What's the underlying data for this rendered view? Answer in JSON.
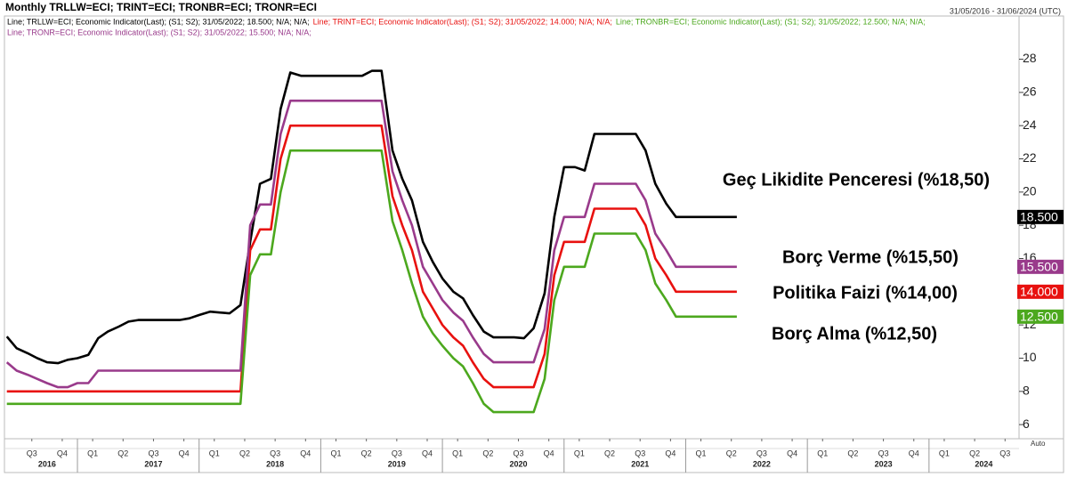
{
  "chart_data": {
    "type": "line",
    "title": "Monthly TRLLW=ECI; TRINT=ECI; TRONBR=ECI; TRONR=ECI",
    "date_range": "31/05/2016 - 31/06/2024 (UTC)",
    "scale_mode": "Auto",
    "x": [
      2016.42,
      2016.5,
      2016.59,
      2016.67,
      2016.75,
      2016.84,
      2016.92,
      2017.0,
      2017.09,
      2017.17,
      2017.25,
      2017.34,
      2017.42,
      2017.5,
      2017.59,
      2017.67,
      2017.75,
      2017.84,
      2017.92,
      2018.0,
      2018.09,
      2018.17,
      2018.25,
      2018.34,
      2018.42,
      2018.5,
      2018.59,
      2018.67,
      2018.75,
      2018.84,
      2018.92,
      2019.0,
      2019.09,
      2019.17,
      2019.25,
      2019.34,
      2019.42,
      2019.5,
      2019.59,
      2019.67,
      2019.75,
      2019.84,
      2019.92,
      2020.0,
      2020.09,
      2020.17,
      2020.25,
      2020.34,
      2020.42,
      2020.5,
      2020.59,
      2020.67,
      2020.75,
      2020.84,
      2020.92,
      2021.0,
      2021.09,
      2021.17,
      2021.25,
      2021.34,
      2021.42,
      2021.5,
      2021.59,
      2021.67,
      2021.75,
      2021.84,
      2021.92,
      2022.0,
      2022.09,
      2022.17,
      2022.25,
      2022.34,
      2022.42
    ],
    "series": [
      {
        "name": "Line; TRLLW=ECI; Economic Indicator(Last); (S1; S2); 31/05/2022; 18.500; N/A; N/A;",
        "color": "#000000",
        "last_label": "18.500",
        "annotation": "Geç Likidite Penceresi (%18,50)",
        "values": [
          11.3,
          10.6,
          10.3,
          10,
          9.75,
          9.7,
          9.9,
          10,
          10.2,
          11.2,
          11.6,
          11.9,
          12.2,
          12.3,
          12.3,
          12.3,
          12.3,
          12.3,
          12.4,
          12.6,
          12.8,
          12.75,
          12.7,
          13.2,
          17,
          20.5,
          20.8,
          25,
          27.2,
          27,
          27,
          27,
          27,
          27,
          27,
          27,
          27.3,
          27.3,
          22.5,
          20.8,
          19.5,
          17,
          15.8,
          14.8,
          14,
          13.6,
          12.6,
          11.6,
          11.25,
          11.25,
          11.25,
          11.2,
          11.8,
          13.9,
          18.5,
          21.5,
          21.5,
          21.3,
          23.5,
          23.5,
          23.5,
          23.5,
          23.5,
          22.5,
          20.5,
          19.3,
          18.5,
          18.5,
          18.5,
          18.5,
          18.5,
          18.5,
          18.5
        ]
      },
      {
        "name": "Line; TRINT=ECI; Economic Indicator(Last); (S1; S2); 31/05/2022; 14.000; N/A; N/A;",
        "color": "#e8110f",
        "last_label": "14.000",
        "annotation": "Politika Faizi (%14,00)",
        "values": [
          8,
          8,
          8,
          8,
          8,
          8,
          8,
          8,
          8,
          8,
          8,
          8,
          8,
          8,
          8,
          8,
          8,
          8,
          8,
          8,
          8,
          8,
          8,
          8,
          16.5,
          17.75,
          17.75,
          22,
          24,
          24,
          24,
          24,
          24,
          24,
          24,
          24,
          24,
          24,
          19.75,
          18,
          16.5,
          14,
          13,
          12,
          11.25,
          10.75,
          9.75,
          8.75,
          8.25,
          8.25,
          8.25,
          8.25,
          8.25,
          10.25,
          15,
          17,
          17,
          17,
          19,
          19,
          19,
          19,
          19,
          18,
          16,
          15,
          14,
          14,
          14,
          14,
          14,
          14,
          14
        ]
      },
      {
        "name": "Line; TRONBR=ECI; Economic Indicator(Last); (S1; S2); 31/05/2022; 12.500; N/A; N/A;",
        "color": "#4ca81e",
        "last_label": "12.500",
        "annotation": "Borç Alma  (%12,50)",
        "values": [
          7.25,
          7.25,
          7.25,
          7.25,
          7.25,
          7.25,
          7.25,
          7.25,
          7.25,
          7.25,
          7.25,
          7.25,
          7.25,
          7.25,
          7.25,
          7.25,
          7.25,
          7.25,
          7.25,
          7.25,
          7.25,
          7.25,
          7.25,
          7.25,
          15,
          16.25,
          16.25,
          20,
          22.5,
          22.5,
          22.5,
          22.5,
          22.5,
          22.5,
          22.5,
          22.5,
          22.5,
          22.5,
          18.25,
          16.5,
          14.5,
          12.5,
          11.5,
          10.75,
          10,
          9.5,
          8.5,
          7.25,
          6.75,
          6.75,
          6.75,
          6.75,
          6.75,
          8.75,
          13.5,
          15.5,
          15.5,
          15.5,
          17.5,
          17.5,
          17.5,
          17.5,
          17.5,
          16.5,
          14.5,
          13.5,
          12.5,
          12.5,
          12.5,
          12.5,
          12.5,
          12.5,
          12.5
        ]
      },
      {
        "name": "Line; TRONR=ECI; Economic Indicator(Last); (S1; S2); 31/05/2022; 15.500; N/A; N/A;",
        "color": "#993a8b",
        "last_label": "15.500",
        "annotation": "Borç Verme (%15,50)",
        "values": [
          9.75,
          9.25,
          9,
          8.75,
          8.5,
          8.25,
          8.25,
          8.5,
          8.5,
          9.25,
          9.25,
          9.25,
          9.25,
          9.25,
          9.25,
          9.25,
          9.25,
          9.25,
          9.25,
          9.25,
          9.25,
          9.25,
          9.25,
          9.25,
          18,
          19.25,
          19.25,
          23.5,
          25.5,
          25.5,
          25.5,
          25.5,
          25.5,
          25.5,
          25.5,
          25.5,
          25.5,
          25.5,
          21.25,
          19.5,
          18,
          15.5,
          14.5,
          13.5,
          12.75,
          12.25,
          11.25,
          10.25,
          9.75,
          9.75,
          9.75,
          9.75,
          9.75,
          11.75,
          16.5,
          18.5,
          18.5,
          18.5,
          20.5,
          20.5,
          20.5,
          20.5,
          20.5,
          19.5,
          17.5,
          16.5,
          15.5,
          15.5,
          15.5,
          15.5,
          15.5,
          15.5,
          15.5
        ]
      }
    ],
    "xlim": [
      2016.4,
      2024.74
    ],
    "ylim": [
      5.15,
      30.6
    ],
    "yticks": [
      6,
      8,
      10,
      12,
      14,
      16,
      18,
      20,
      22,
      24,
      26,
      28
    ],
    "xticks": [
      {
        "value": 2016.625,
        "label": "Q3"
      },
      {
        "value": 2016.875,
        "label": "Q4"
      },
      {
        "value": 2017.125,
        "label": "Q1"
      },
      {
        "value": 2017.375,
        "label": "Q2"
      },
      {
        "value": 2017.625,
        "label": "Q3"
      },
      {
        "value": 2017.875,
        "label": "Q4"
      },
      {
        "value": 2018.125,
        "label": "Q1"
      },
      {
        "value": 2018.375,
        "label": "Q2"
      },
      {
        "value": 2018.625,
        "label": "Q3"
      },
      {
        "value": 2018.875,
        "label": "Q4"
      },
      {
        "value": 2019.125,
        "label": "Q1"
      },
      {
        "value": 2019.375,
        "label": "Q2"
      },
      {
        "value": 2019.625,
        "label": "Q3"
      },
      {
        "value": 2019.875,
        "label": "Q4"
      },
      {
        "value": 2020.125,
        "label": "Q1"
      },
      {
        "value": 2020.375,
        "label": "Q2"
      },
      {
        "value": 2020.625,
        "label": "Q3"
      },
      {
        "value": 2020.875,
        "label": "Q4"
      },
      {
        "value": 2021.125,
        "label": "Q1"
      },
      {
        "value": 2021.375,
        "label": "Q2"
      },
      {
        "value": 2021.625,
        "label": "Q3"
      },
      {
        "value": 2021.875,
        "label": "Q4"
      },
      {
        "value": 2022.125,
        "label": "Q1"
      },
      {
        "value": 2022.375,
        "label": "Q2"
      },
      {
        "value": 2022.625,
        "label": "Q3"
      },
      {
        "value": 2022.875,
        "label": "Q4"
      },
      {
        "value": 2023.125,
        "label": "Q1"
      },
      {
        "value": 2023.375,
        "label": "Q2"
      },
      {
        "value": 2023.625,
        "label": "Q3"
      },
      {
        "value": 2023.875,
        "label": "Q4"
      },
      {
        "value": 2024.125,
        "label": "Q1"
      },
      {
        "value": 2024.375,
        "label": "Q2"
      },
      {
        "value": 2024.625,
        "label": "Q3"
      }
    ],
    "year_ticks": [
      {
        "value": 2016.75,
        "label": "2016"
      },
      {
        "value": 2017.625,
        "label": "2017"
      },
      {
        "value": 2018.625,
        "label": "2018"
      },
      {
        "value": 2019.625,
        "label": "2019"
      },
      {
        "value": 2020.625,
        "label": "2020"
      },
      {
        "value": 2021.625,
        "label": "2021"
      },
      {
        "value": 2022.625,
        "label": "2022"
      },
      {
        "value": 2023.625,
        "label": "2023"
      },
      {
        "value": 2024.45,
        "label": "2024"
      }
    ],
    "year_separators": [
      2017,
      2018,
      2019,
      2020,
      2021,
      2022,
      2023,
      2024
    ]
  }
}
